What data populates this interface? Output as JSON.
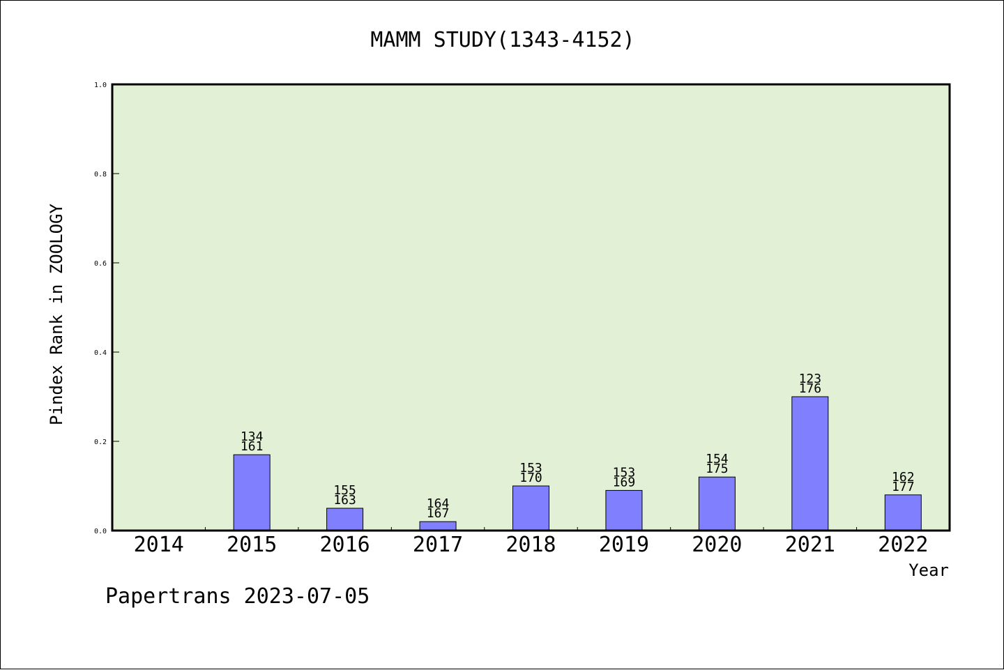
{
  "chart_data": {
    "type": "bar",
    "title": "MAMM STUDY(1343-4152)",
    "xlabel": "Year",
    "ylabel": "Pindex Rank in ZOOLOGY",
    "ylim": [
      0,
      1.0
    ],
    "yticks": [
      "0.0",
      "0.2",
      "0.4",
      "0.6",
      "0.8",
      "1.0"
    ],
    "categories": [
      "2014",
      "2015",
      "2016",
      "2017",
      "2018",
      "2019",
      "2020",
      "2021",
      "2022"
    ],
    "values": [
      0,
      0.17,
      0.05,
      0.02,
      0.1,
      0.09,
      0.12,
      0.3,
      0.08
    ],
    "labels_top": [
      "",
      "134",
      "155",
      "164",
      "153",
      "153",
      "154",
      "123",
      "162"
    ],
    "labels_bottom": [
      "",
      "161",
      "163",
      "167",
      "170",
      "169",
      "175",
      "176",
      "177"
    ],
    "plot_background": "#e2f0d6",
    "bar_color": "#8080ff",
    "grid": false
  },
  "footer": "Papertrans 2023-07-05"
}
